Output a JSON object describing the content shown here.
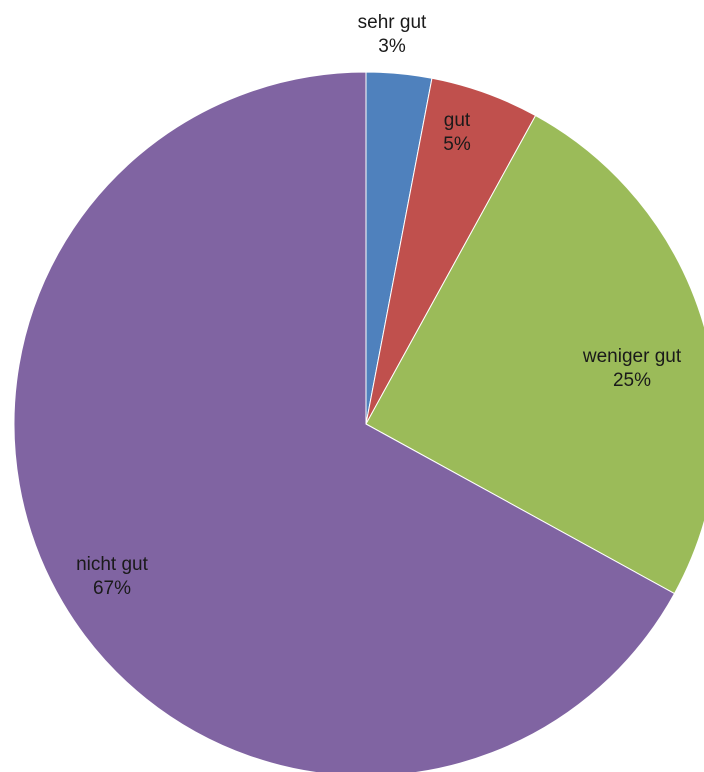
{
  "chart_data": {
    "type": "pie",
    "title": "",
    "start_angle": "12 o'clock",
    "direction": "clockwise",
    "legend": "none",
    "slices": [
      {
        "category": "sehr gut",
        "value": 3,
        "value_label": "3%",
        "color": "#4f81bd"
      },
      {
        "category": "gut",
        "value": 5,
        "value_label": "5%",
        "color": "#c0504d"
      },
      {
        "category": "weniger gut",
        "value": 25,
        "value_label": "25%",
        "color": "#9bbb59"
      },
      {
        "category": "nicht gut",
        "value": 67,
        "value_label": "67%",
        "color": "#8064a2"
      }
    ]
  }
}
